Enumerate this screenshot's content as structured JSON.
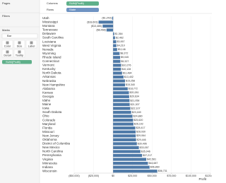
{
  "ui": {
    "pages": "Pages",
    "filters": "Filters",
    "marks": "Marks",
    "mark_type": "Bar",
    "buttons": [
      "Color",
      "Size",
      "Label",
      "Detail",
      "Tooltip"
    ],
    "marks_pill": "SUM(Profit)",
    "columns_label": "Columns",
    "columns_pill": "SUM(Profit)",
    "rows_label": "Rows",
    "rows_pill": "State"
  },
  "chart_data": {
    "type": "bar",
    "orientation": "horizontal",
    "x_label": "Profit",
    "color": "#4e79a7",
    "categories": [
      "Utah",
      "Mississippi",
      "Montana",
      "Tennessee",
      "Delaware",
      "South Carolina",
      "Louisiana",
      "West Virginia",
      "Nevada",
      "Wyoming",
      "Rhode Island",
      "Connecticut",
      "Vermont",
      "Kentucky",
      "North Dakota",
      "Arkansas",
      "Nebraska",
      "New Hampshire",
      "Alabama",
      "Kansas",
      "Georgia",
      "Idaho",
      "Maine",
      "Iowa",
      "South Dakota",
      "Ohio",
      "Colorado",
      "Maryland",
      "Florida",
      "Missouri",
      "New Jersey",
      "Oklahoma",
      "District of Columbia",
      "New Mexico",
      "North Carolina",
      "Pennsylvania",
      "Virginia",
      "Minnesota",
      "Indiana",
      "Wisconsin"
    ],
    "values": [
      -1243,
      -18603,
      -13480,
      -8468,
      1364,
      2462,
      3957,
      4210,
      5146,
      8372,
      9045,
      9327,
      10276,
      10128,
      11484,
      13402,
      15258,
      15340,
      18772,
      20281,
      20634,
      21058,
      21307,
      22107,
      23169,
      24880,
      25620,
      26102,
      28417,
      28930,
      29064,
      29446,
      30496,
      33057,
      35046,
      37217,
      42581,
      44687,
      46860,
      56731
    ],
    "value_labels": [
      "($1,243)",
      "($18,603)",
      "($13,480)",
      "($8,468)",
      "$1,364",
      "$2,462",
      "$3,957",
      "$4,210",
      "$5,146",
      "$8,372",
      "$9,045",
      "$9,327",
      "$10,276",
      "$10,128",
      "$11,484",
      "$13,402",
      "$15,258",
      "$15,340",
      "$18,772",
      "$20,281",
      "$20,634",
      "$21,058",
      "$21,307",
      "$22,107",
      "$23,169",
      "$24,880",
      "$25,620",
      "$26,102",
      "$28,417",
      "$28,930",
      "$29,064",
      "$29,446",
      "$30,496",
      "$33,057",
      "$35,046",
      "$37,217",
      "$42,581",
      "$44,687",
      "$46,860",
      "$56,731"
    ],
    "xlim": [
      -50000,
      125000
    ],
    "xticks": [
      {
        "value": -50000,
        "label": "($50,000)"
      },
      {
        "value": -25000,
        "label": "($25,000)"
      },
      {
        "value": 0,
        "label": "$0"
      },
      {
        "value": 25000,
        "label": "$25,000"
      },
      {
        "value": 50000,
        "label": "$50,000"
      },
      {
        "value": 75000,
        "label": "$75,000"
      },
      {
        "value": 100000,
        "label": "$100,000"
      },
      {
        "value": 125000,
        "label": "$125,000"
      }
    ],
    "grid": true
  }
}
